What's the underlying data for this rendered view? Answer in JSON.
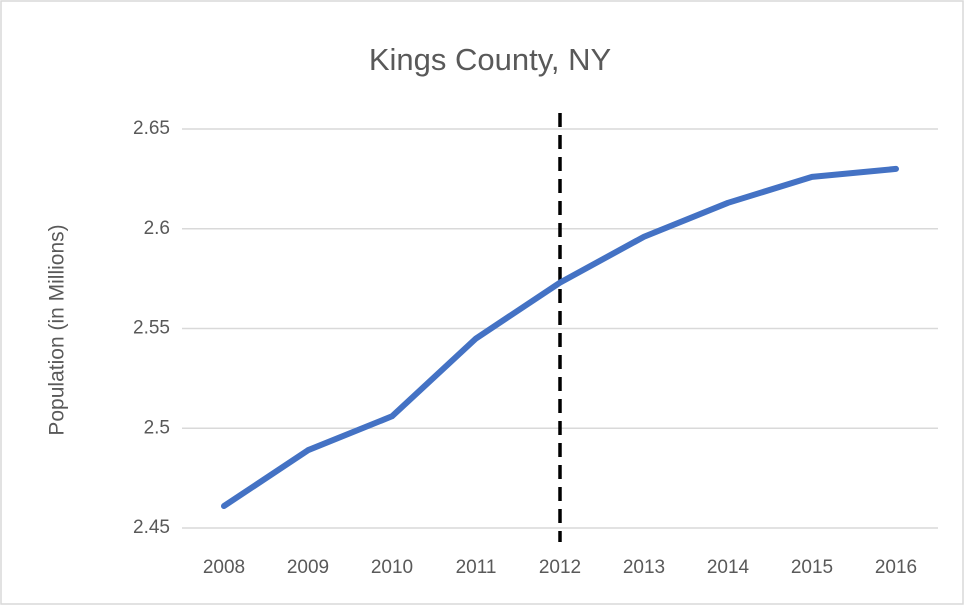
{
  "chart_data": {
    "type": "line",
    "title": "Kings County, NY",
    "y_label": "Population (in Millions)",
    "categories": [
      "2008",
      "2009",
      "2010",
      "2011",
      "2012",
      "2013",
      "2014",
      "2015",
      "2016"
    ],
    "values": [
      2.461,
      2.489,
      2.506,
      2.545,
      2.573,
      2.596,
      2.613,
      2.626,
      2.63
    ],
    "color": "#4472c4",
    "ylim": [
      2.45,
      2.65
    ],
    "yticks": [
      2.45,
      2.5,
      2.55,
      2.6,
      2.65
    ],
    "grid": true,
    "vline": {
      "x": "2012",
      "style": "dashed",
      "color": "#000000"
    }
  }
}
